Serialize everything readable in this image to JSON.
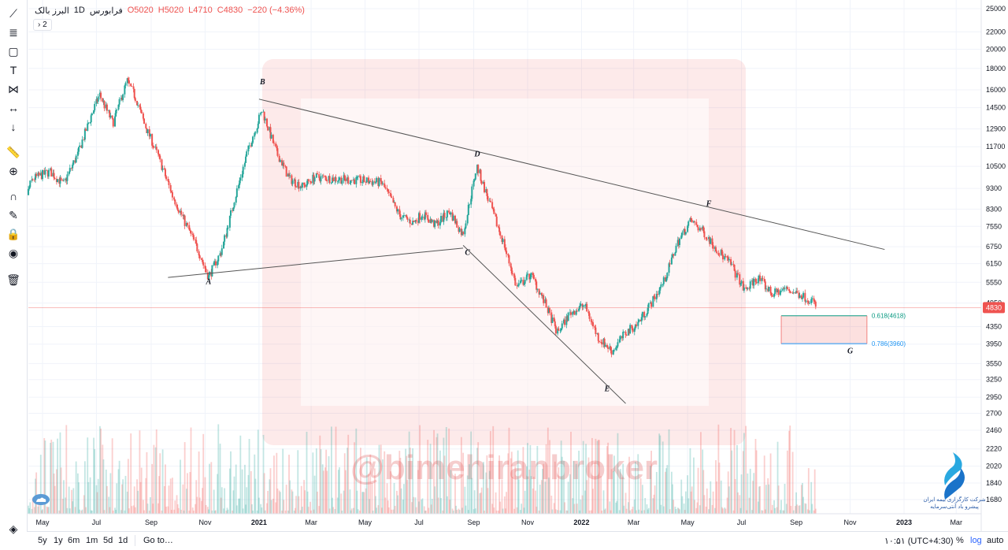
{
  "legend": {
    "symbol": "البرز بالک",
    "interval": "1D",
    "exchange": "فرابورس",
    "open": "O5020",
    "high": "H5020",
    "low": "L4710",
    "close": "C4830",
    "change": "−220 (−4.36%)",
    "toggle": "› 2"
  },
  "watermark": "@bimehiranbroker",
  "logo_text": [
    "شرکت کارگزاری بیمه ایران",
    "پیشرو باد آنتی‌سرمایه"
  ],
  "bottom_bar": {
    "ranges": [
      "5y",
      "1y",
      "6m",
      "1m",
      "5d",
      "1d"
    ],
    "goto": "Go to…",
    "time": "۱۰:۵۱ (UTC+4:30)",
    "percent": "%",
    "log": "log",
    "auto": "auto"
  },
  "colors": {
    "up": "#26a69a",
    "down": "#ef5350",
    "line": "#555555",
    "fib_upper": "#089981",
    "fib_lower": "#2196f3",
    "price_tag": "#ef5350",
    "watermark": "#e57373"
  },
  "toolbar": [
    "trend-line-icon",
    "fib-retracement-icon",
    "rectangle-icon",
    "text-icon",
    "pattern-icon",
    "measure-icon",
    "arrow-down-icon",
    "ruler-icon",
    "zoom-icon",
    "magnet-icon",
    "lock-drawings-icon",
    "lock-icon",
    "eye-icon",
    "trash-icon",
    "layers-icon"
  ],
  "chart_data": {
    "type": "candlestick",
    "scale": "log",
    "y_ticks": [
      25000,
      22000,
      20000,
      18000,
      16000,
      14500,
      12900,
      11700,
      10500,
      9300,
      8300,
      7550,
      6750,
      6150,
      5550,
      4950,
      4350,
      3950,
      3550,
      3250,
      2950,
      2700,
      2460,
      2220,
      2020,
      1840,
      1680
    ],
    "x_ticks": [
      "May",
      "Jul",
      "Sep",
      "Nov",
      "2021",
      "Mar",
      "May",
      "Jul",
      "Sep",
      "Nov",
      "2022",
      "Mar",
      "May",
      "Jul",
      "Sep",
      "Nov",
      "2023",
      "Mar"
    ],
    "last_price": "4830",
    "last_price_value": 4830,
    "trendlines": [
      {
        "name": "A-C line",
        "from": [
          "2020-09-20",
          5700
        ],
        "to": [
          "2021-08-20",
          6700
        ]
      },
      {
        "name": "B-F line",
        "from": [
          "2021-01-01",
          15200
        ],
        "to": [
          "2022-12-10",
          6650
        ]
      },
      {
        "name": "C-E line",
        "from": [
          "2021-08-20",
          6800
        ],
        "to": [
          "2022-02-20",
          2850
        ]
      }
    ],
    "points": [
      {
        "label": "A",
        "date": "2020-11-05",
        "price": 5500
      },
      {
        "label": "B",
        "date": "2021-01-05",
        "price": 16500
      },
      {
        "label": "C",
        "date": "2021-08-25",
        "price": 6450
      },
      {
        "label": "D",
        "date": "2021-09-05",
        "price": 11100
      },
      {
        "label": "E",
        "date": "2022-01-30",
        "price": 3050
      },
      {
        "label": "F",
        "date": "2022-05-25",
        "price": 8450
      },
      {
        "label": "G",
        "date": "2022-11-01",
        "price": 3750
      }
    ],
    "fib_zone": {
      "from_date": "2022-08-15",
      "to_date": "2022-11-20",
      "level_upper": {
        "label": "0.618(4618)",
        "value": 4618
      },
      "level_lower": {
        "label": "0.786(3960)",
        "value": 3960
      }
    },
    "path_points": [
      [
        "2020-04-01",
        7600
      ],
      [
        "2020-04-20",
        9800
      ],
      [
        "2020-05-10",
        10200
      ],
      [
        "2020-05-25",
        9500
      ],
      [
        "2020-06-10",
        11200
      ],
      [
        "2020-06-25",
        13800
      ],
      [
        "2020-07-05",
        15600
      ],
      [
        "2020-07-20",
        13300
      ],
      [
        "2020-08-05",
        16800
      ],
      [
        "2020-08-15",
        15300
      ],
      [
        "2020-08-25",
        13200
      ],
      [
        "2020-09-10",
        11000
      ],
      [
        "2020-09-25",
        9000
      ],
      [
        "2020-10-10",
        7700
      ],
      [
        "2020-10-25",
        6600
      ],
      [
        "2020-11-05",
        5700
      ],
      [
        "2020-11-20",
        6600
      ],
      [
        "2020-12-05",
        8800
      ],
      [
        "2020-12-20",
        11500
      ],
      [
        "2021-01-05",
        14300
      ],
      [
        "2021-01-20",
        11500
      ],
      [
        "2021-02-05",
        9800
      ],
      [
        "2021-02-20",
        9400
      ],
      [
        "2021-03-05",
        9900
      ],
      [
        "2021-04-01",
        9800
      ],
      [
        "2021-05-01",
        9700
      ],
      [
        "2021-05-20",
        9600
      ],
      [
        "2021-06-10",
        8000
      ],
      [
        "2021-06-25",
        7700
      ],
      [
        "2021-07-05",
        8100
      ],
      [
        "2021-07-20",
        7600
      ],
      [
        "2021-08-05",
        8200
      ],
      [
        "2021-08-20",
        7200
      ],
      [
        "2021-09-05",
        10500
      ],
      [
        "2021-09-20",
        8500
      ],
      [
        "2021-10-05",
        6900
      ],
      [
        "2021-10-20",
        5400
      ],
      [
        "2021-11-05",
        5800
      ],
      [
        "2021-11-20",
        5000
      ],
      [
        "2021-12-05",
        4200
      ],
      [
        "2021-12-20",
        4700
      ],
      [
        "2022-01-05",
        4900
      ],
      [
        "2022-01-20",
        4100
      ],
      [
        "2022-02-05",
        3800
      ],
      [
        "2022-02-20",
        4200
      ],
      [
        "2022-03-05",
        4400
      ],
      [
        "2022-03-20",
        4900
      ],
      [
        "2022-04-05",
        5600
      ],
      [
        "2022-04-20",
        6900
      ],
      [
        "2022-05-05",
        7800
      ],
      [
        "2022-05-20",
        7300
      ],
      [
        "2022-06-05",
        6600
      ],
      [
        "2022-06-20",
        6100
      ],
      [
        "2022-07-05",
        5300
      ],
      [
        "2022-07-20",
        5700
      ],
      [
        "2022-08-05",
        5200
      ],
      [
        "2022-08-20",
        5350
      ],
      [
        "2022-09-05",
        5200
      ],
      [
        "2022-09-20",
        5000
      ],
      [
        "2022-09-25",
        4830
      ]
    ]
  }
}
